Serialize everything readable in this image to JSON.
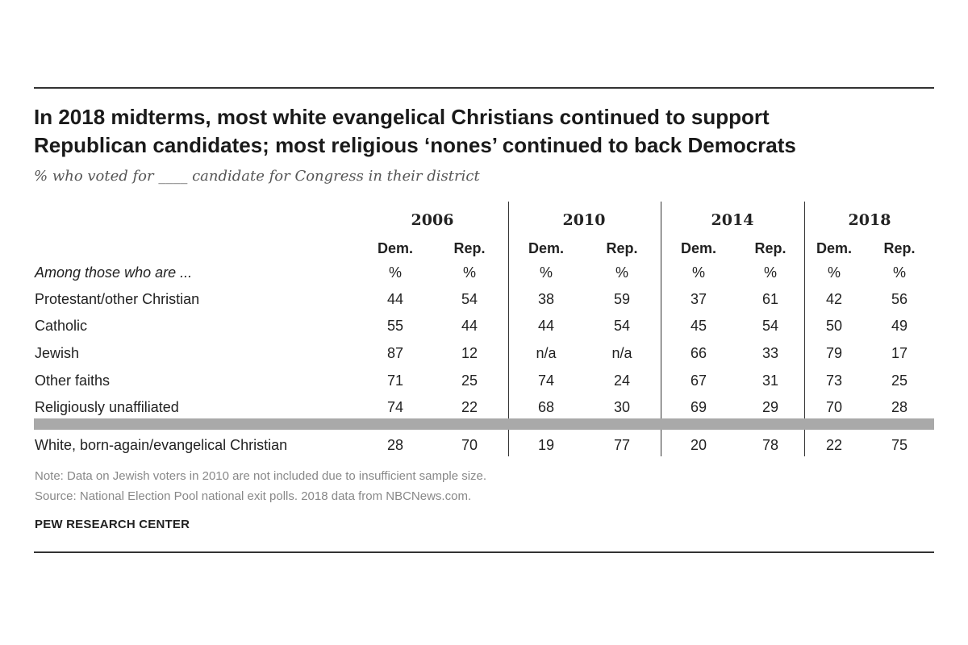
{
  "chart_data": {
    "type": "table",
    "title_lines": [
      "In 2018 midterms, most white evangelical Christians continued to support",
      "Republican candidates; most religious ‘nones’ continued to back Democrats"
    ],
    "subtitle": "% who voted for ____ candidate for Congress in their district",
    "years": [
      "2006",
      "2010",
      "2014",
      "2018"
    ],
    "party_labels": [
      "Dem.",
      "Rep."
    ],
    "unit_label": "%",
    "row_header": "Among those who are ...",
    "rows": [
      {
        "label": "Protestant/other Christian",
        "values": [
          "44",
          "54",
          "38",
          "59",
          "37",
          "61",
          "42",
          "56"
        ]
      },
      {
        "label": "Catholic",
        "values": [
          "55",
          "44",
          "44",
          "54",
          "45",
          "54",
          "50",
          "49"
        ]
      },
      {
        "label": "Jewish",
        "values": [
          "87",
          "12",
          "n/a",
          "n/a",
          "66",
          "33",
          "79",
          "17"
        ]
      },
      {
        "label": "Other faiths",
        "values": [
          "71",
          "25",
          "74",
          "24",
          "67",
          "31",
          "73",
          "25"
        ]
      },
      {
        "label": "Religiously unaffiliated",
        "values": [
          "74",
          "22",
          "68",
          "30",
          "69",
          "29",
          "70",
          "28"
        ]
      }
    ],
    "highlight_row": {
      "label": "White, born-again/evangelical Christian",
      "values": [
        "28",
        "70",
        "19",
        "77",
        "20",
        "78",
        "22",
        "75"
      ]
    },
    "note": "Note: Data on Jewish voters in 2010 are not included due to insufficient sample size.",
    "source": "Source: National Election Pool national exit polls. 2018 data from NBCNews.com.",
    "brand": "PEW RESEARCH CENTER"
  }
}
